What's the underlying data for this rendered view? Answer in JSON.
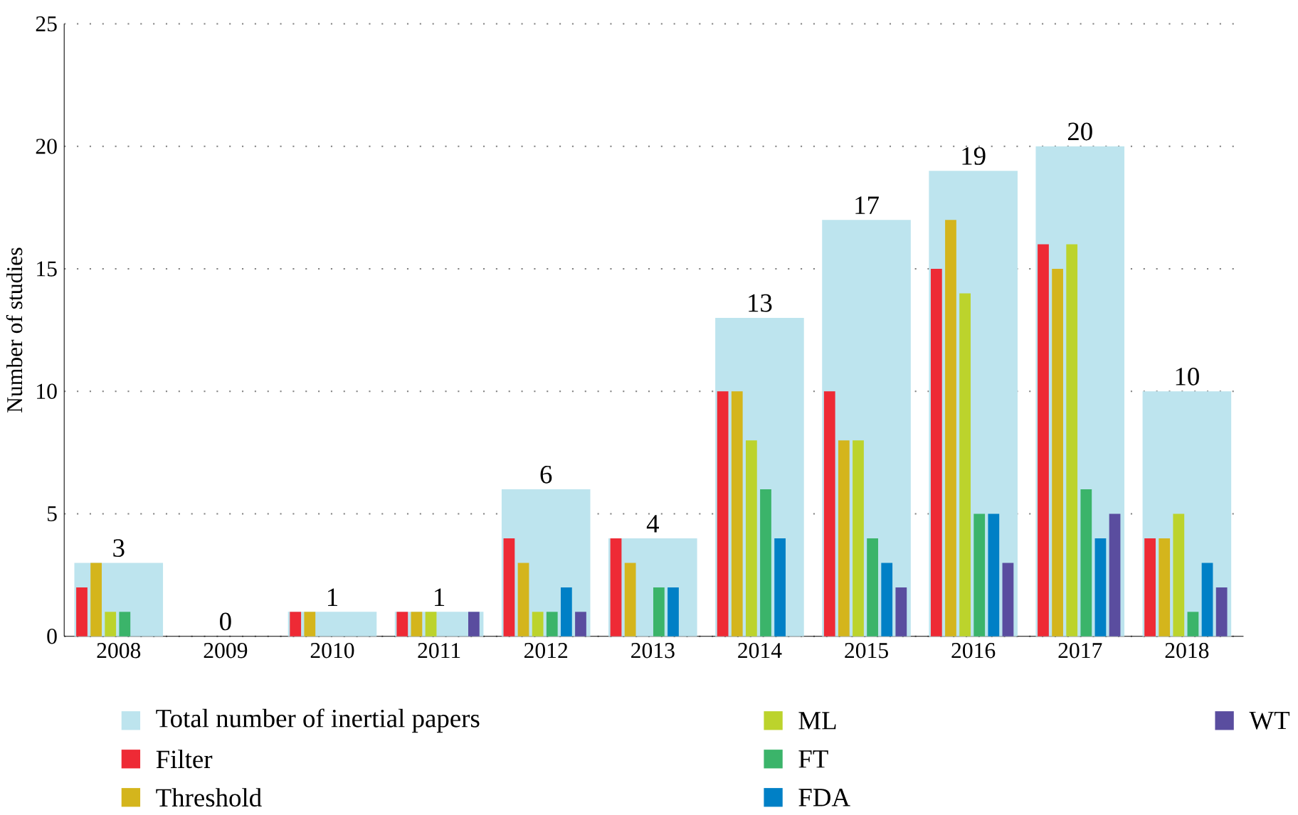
{
  "chart_data": {
    "type": "bar",
    "ylabel": "Number of studies",
    "categories": [
      "2008",
      "2009",
      "2010",
      "2011",
      "2012",
      "2013",
      "2014",
      "2015",
      "2016",
      "2017",
      "2018"
    ],
    "series": [
      {
        "name": "Total number of inertial papers",
        "color": "#bde4ee",
        "values": [
          3,
          0,
          1,
          1,
          6,
          4,
          13,
          17,
          19,
          20,
          10
        ],
        "value_labels": [
          "3",
          "0",
          "1",
          "1",
          "6",
          "4",
          "13",
          "17",
          "19",
          "20",
          "10"
        ]
      },
      {
        "name": "Filter",
        "color": "#ee2a35",
        "values": [
          2,
          0,
          1,
          1,
          4,
          4,
          10,
          10,
          15,
          16,
          4
        ]
      },
      {
        "name": "Threshold",
        "color": "#d4b51c",
        "values": [
          3,
          0,
          1,
          1,
          3,
          3,
          10,
          8,
          17,
          15,
          4
        ]
      },
      {
        "name": "ML",
        "color": "#bcd32c",
        "values": [
          1,
          0,
          0,
          1,
          1,
          0,
          8,
          8,
          14,
          16,
          5
        ]
      },
      {
        "name": "FT",
        "color": "#3bb46a",
        "values": [
          1,
          0,
          0,
          0,
          1,
          2,
          6,
          4,
          5,
          6,
          1
        ]
      },
      {
        "name": "FDA",
        "color": "#0080c6",
        "values": [
          0,
          0,
          0,
          0,
          2,
          2,
          4,
          3,
          5,
          4,
          3
        ]
      },
      {
        "name": "WT",
        "color": "#5a4d9f",
        "values": [
          0,
          0,
          0,
          1,
          1,
          0,
          0,
          2,
          3,
          5,
          2
        ]
      }
    ],
    "ylim": [
      0,
      25
    ],
    "yticks": [
      0,
      5,
      10,
      15,
      20,
      25
    ],
    "grid": "y",
    "legend": "bottom"
  }
}
